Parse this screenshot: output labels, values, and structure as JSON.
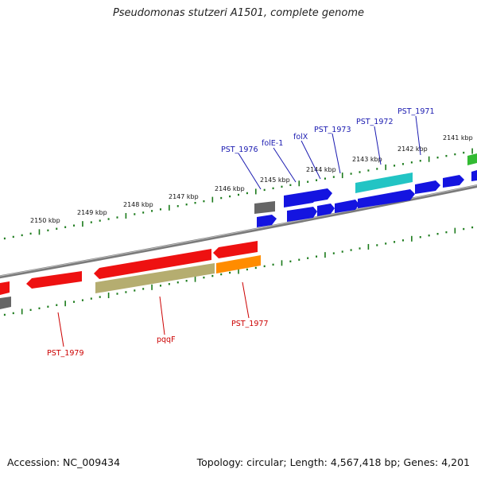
{
  "title": "Pseudomonas stutzeri A1501, complete genome",
  "footer": {
    "accession": "Accession: NC_009434",
    "summary": "Topology: circular; Length: 4,567,418 bp; Genes: 4,201"
  },
  "scale_labels": [
    "2150 kbp",
    "2149 kbp",
    "2148 kbp",
    "2147 kbp",
    "2146 kbp",
    "2145 kbp",
    "2144 kbp",
    "2143 kbp",
    "2142 kbp",
    "2141 kbp"
  ],
  "top_labels": [
    "PST_1976",
    "folE-1",
    "folX",
    "PST_1973",
    "PST_1972",
    "PST_1971"
  ],
  "bottom_labels": [
    "PST_1979",
    "pqqF",
    "PST_1977"
  ],
  "colors": {
    "backbone": "#7a7a7a",
    "tick": "#1a7a1a",
    "blue": "#1414e0",
    "red": "#ee1111",
    "orange": "#ff8c00",
    "olive": "#b5ad70",
    "cyan": "#22c4c4",
    "grey": "#666666",
    "green": "#33bb33",
    "label_top": "#1a1ab0",
    "label_bottom": "#cc0000"
  }
}
